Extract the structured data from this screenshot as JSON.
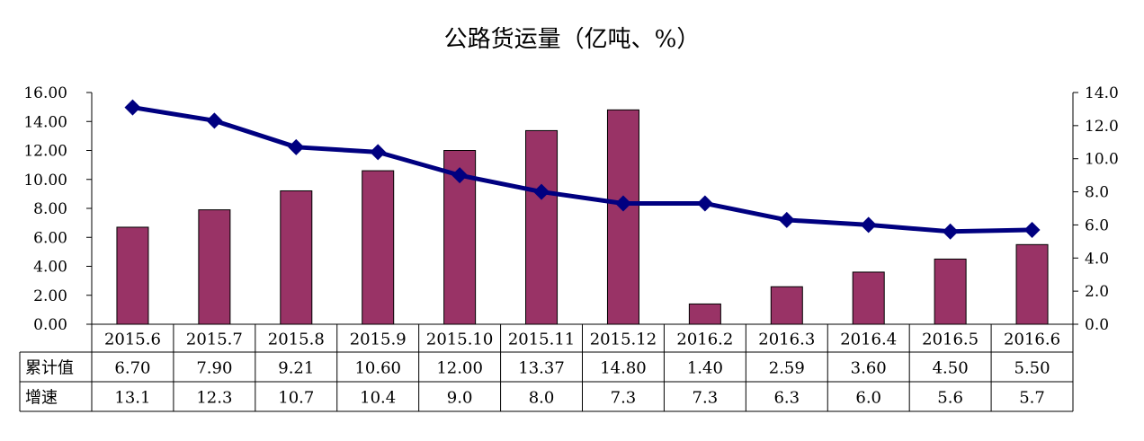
{
  "chart_data": {
    "type": "bar",
    "title": "公路货运量（亿吨、%）",
    "categories": [
      "2015.6",
      "2015.7",
      "2015.8",
      "2015.9",
      "2015.10",
      "2015.11",
      "2015.12",
      "2016.2",
      "2016.3",
      "2016.4",
      "2016.5",
      "2016.6"
    ],
    "series": [
      {
        "name": "累计值",
        "type": "bar",
        "axis": "left",
        "color": "#993366",
        "values": [
          6.7,
          7.9,
          9.21,
          10.6,
          12.0,
          13.37,
          14.8,
          1.4,
          2.59,
          3.6,
          4.5,
          5.5
        ],
        "labels": [
          "6.70",
          "7.90",
          "9.21",
          "10.60",
          "12.00",
          "13.37",
          "14.80",
          "1.40",
          "2.59",
          "3.60",
          "4.50",
          "5.50"
        ]
      },
      {
        "name": "增速",
        "type": "line",
        "axis": "right",
        "color": "#000080",
        "values": [
          13.1,
          12.3,
          10.7,
          10.4,
          9.0,
          8.0,
          7.3,
          7.3,
          6.3,
          6.0,
          5.6,
          5.7
        ],
        "labels": [
          "13.1",
          "12.3",
          "10.7",
          "10.4",
          "9.0",
          "8.0",
          "7.3",
          "7.3",
          "6.3",
          "6.0",
          "5.6",
          "5.7"
        ]
      }
    ],
    "left_axis": {
      "ylim": [
        0,
        16
      ],
      "ticks": [
        "0.00",
        "2.00",
        "4.00",
        "6.00",
        "8.00",
        "10.00",
        "12.00",
        "14.00",
        "16.00"
      ]
    },
    "right_axis": {
      "ylim": [
        0,
        14
      ],
      "ticks": [
        "0.0",
        "2.0",
        "4.0",
        "6.0",
        "8.0",
        "10.0",
        "12.0",
        "14.0"
      ]
    },
    "grid": false,
    "legend": "data table below chart"
  }
}
